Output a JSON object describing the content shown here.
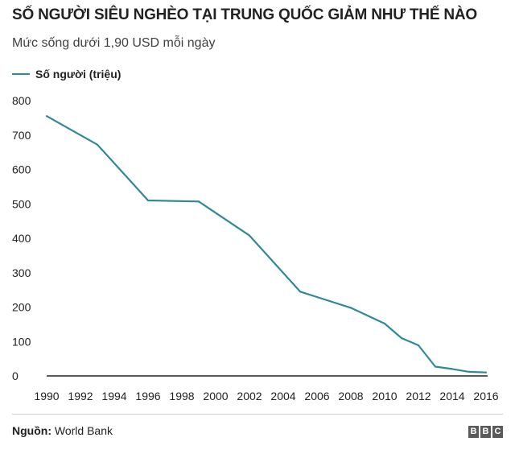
{
  "chart_data": {
    "type": "line",
    "title": "SỐ NGƯỜI SIÊU NGHÈO TẠI TRUNG QUỐC GIẢM NHƯ THẾ NÀO",
    "subtitle": "Mức sống dưới 1,90 USD mỗi ngày",
    "xlabel": "",
    "ylabel": "",
    "ylim": [
      0,
      800
    ],
    "xlim": [
      1990,
      2016
    ],
    "yticks": [
      0,
      100,
      200,
      300,
      400,
      500,
      600,
      700,
      800
    ],
    "xticks": [
      1990,
      1992,
      1994,
      1996,
      1998,
      2000,
      2002,
      2004,
      2006,
      2008,
      2010,
      2012,
      2014,
      2016
    ],
    "grid": false,
    "legend_position": "top-left",
    "series": [
      {
        "name": "Số người (triệu)",
        "color": "#2e8a99",
        "x": [
          1990,
          1993,
          1996,
          1999,
          2002,
          2005,
          2008,
          2010,
          2011,
          2012,
          2013,
          2014,
          2015,
          2016
        ],
        "values": [
          755,
          672,
          510,
          507,
          408,
          245,
          198,
          152,
          110,
          89,
          27,
          20,
          12,
          10
        ]
      }
    ]
  },
  "source": {
    "label": "Nguồn:",
    "text": "World Bank"
  },
  "logo": {
    "letters": [
      "B",
      "B",
      "C"
    ]
  }
}
